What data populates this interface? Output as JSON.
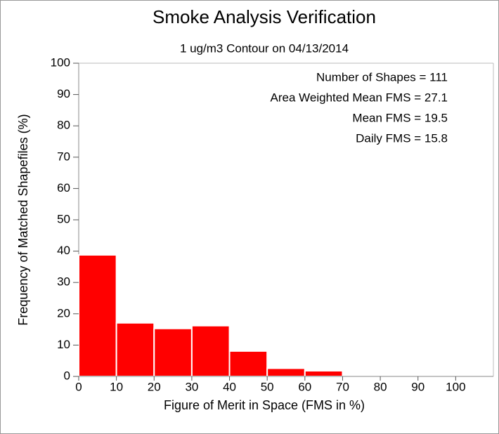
{
  "chart_data": {
    "type": "histogram",
    "title": "Smoke Analysis Verification",
    "subtitle": "1 ug/m3 Contour on 04/13/2014",
    "x_label": "Figure of Merit in Space (FMS in %)",
    "y_label": "Frequency of Matched Shapefiles (%)",
    "annotations": [
      "Number of Shapes = 111",
      "Area Weighted Mean FMS = 27.1",
      "Mean FMS = 19.5",
      "Daily FMS = 15.8"
    ],
    "bins": [
      0,
      10,
      20,
      30,
      40,
      50,
      60,
      70,
      80,
      90,
      100,
      110
    ],
    "counts": [
      38.8,
      17.1,
      15.3,
      16.2,
      8.1,
      2.6,
      1.8,
      0,
      0,
      0,
      0
    ],
    "color": "#ff0000",
    "xlim": [
      0,
      110
    ],
    "xticks": [
      0,
      10,
      20,
      30,
      40,
      50,
      60,
      70,
      80,
      90,
      100
    ],
    "ylim": [
      0,
      100
    ],
    "yticks": [
      0,
      10,
      20,
      30,
      40,
      50,
      60,
      70,
      80,
      90,
      100
    ],
    "grid": false
  }
}
